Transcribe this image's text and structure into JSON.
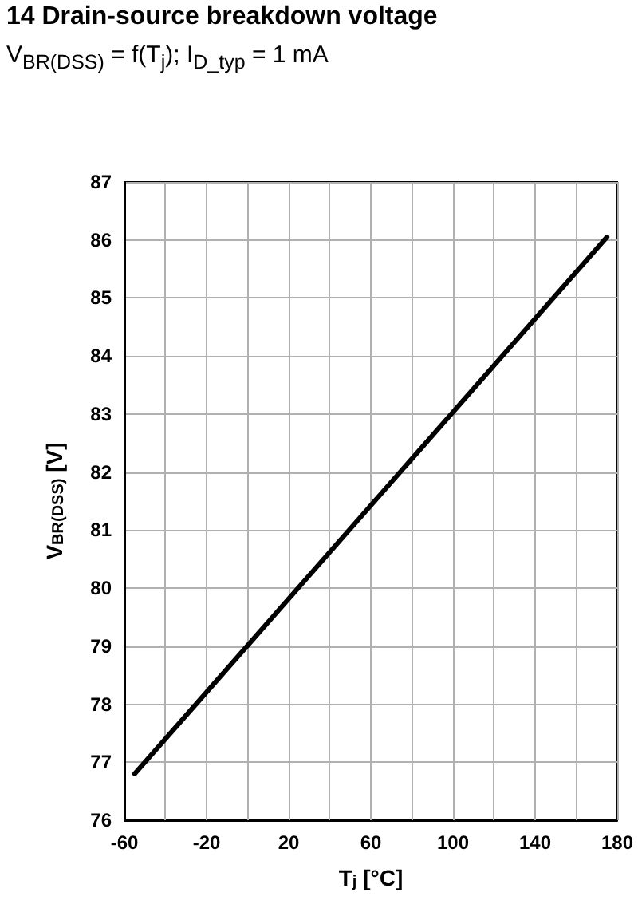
{
  "chart_data": {
    "type": "line",
    "title": "14 Drain-source breakdown voltage",
    "subtitle": "V$_{BR(DSS)}$ = f(T$_{j}$); I$_{D_typ}$ = 1 mA",
    "xlabel": "T$_{j}$ [°C]",
    "ylabel": "V$_{BR(DSS)}$ [V]",
    "series": [
      {
        "x": [
          -55,
          175
        ],
        "values": [
          76.8,
          86.05
        ],
        "color": "#000000"
      }
    ],
    "xlim": [
      -60,
      180
    ],
    "xticks": [
      -60,
      {
        "value": -40,
        "label": null
      },
      -20,
      {
        "value": 0,
        "label": null
      },
      20,
      {
        "value": 40,
        "label": null
      },
      60,
      {
        "value": 80,
        "label": null
      },
      100,
      {
        "value": 120,
        "label": null
      },
      140,
      {
        "value": 160,
        "label": null
      },
      180
    ],
    "ylim": [
      76,
      87
    ],
    "yticks": [
      76,
      77,
      78,
      79,
      80,
      81,
      82,
      83,
      84,
      85,
      86,
      87
    ],
    "grid": true,
    "marker": "none",
    "line_style": "solid"
  }
}
